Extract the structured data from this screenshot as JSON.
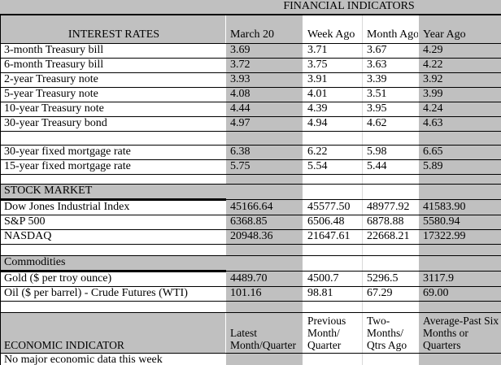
{
  "title": "FINANCIAL INDICATORS",
  "colors": {
    "cell_gray": "#c0c0c0",
    "grid_black": "#000000",
    "light_grid": "#d9d9d9"
  },
  "columns": [
    "March 20",
    "Week Ago",
    "Month Ago",
    "Year Ago"
  ],
  "interest_rates": {
    "section": "INTEREST RATES",
    "rows": [
      {
        "label": "3-month Treasury bill",
        "values": [
          "3.69",
          "3.71",
          "3.67",
          "4.29"
        ]
      },
      {
        "label": "6-month Treasury bill",
        "values": [
          "3.72",
          "3.75",
          "3.63",
          "4.22"
        ]
      },
      {
        "label": "2-year Treasury note",
        "values": [
          "3.93",
          "3.91",
          "3.39",
          "3.92"
        ]
      },
      {
        "label": "5-year Treasury note",
        "values": [
          "4.08",
          "4.01",
          "3.51",
          "3.99"
        ]
      },
      {
        "label": "10-year Treasury note",
        "values": [
          "4.44",
          "4.39",
          "3.95",
          "4.24"
        ]
      },
      {
        "label": "30-year Treasury bond",
        "values": [
          "4.97",
          "4.94",
          "4.62",
          "4.63"
        ]
      }
    ]
  },
  "mortgages": {
    "rows": [
      {
        "label": "30-year fixed mortgage rate",
        "values": [
          "6.38",
          "6.22",
          "5.98",
          "6.65"
        ]
      },
      {
        "label": "15-year fixed mortgage rate",
        "values": [
          "5.75",
          "5.54",
          "5.44",
          "5.89"
        ]
      }
    ]
  },
  "stock_market": {
    "section": "STOCK MARKET",
    "rows": [
      {
        "label": "Dow Jones Industrial Index",
        "values": [
          "45166.64",
          "45577.50",
          "48977.92",
          "41583.90"
        ]
      },
      {
        "label": "S&P 500",
        "values": [
          "6368.85",
          "6506.48",
          "6878.88",
          "5580.94"
        ]
      },
      {
        "label": "NASDAQ",
        "values": [
          "20948.36",
          "21647.61",
          "22668.21",
          "17322.99"
        ]
      }
    ]
  },
  "commodities": {
    "section": "Commodities",
    "rows": [
      {
        "label": "Gold ($ per troy ounce)",
        "values": [
          "4489.70",
          "4500.7",
          "5296.5",
          "3117.9"
        ]
      },
      {
        "label": "Oil ($ per barrel) - Crude Futures (WTI)",
        "values": [
          "101.16",
          "98.81",
          "67.29",
          "69.00"
        ]
      }
    ]
  },
  "economic": {
    "label": "ECONOMIC INDICATOR",
    "columns": [
      "Latest\nMonth/Quarter",
      "Previous\nMonth/\nQuarter",
      "Two-\nMonths/\nQtrs Ago",
      "Average-Past Six\nMonths or\nQuarters"
    ],
    "note": "No major economic data this week"
  }
}
